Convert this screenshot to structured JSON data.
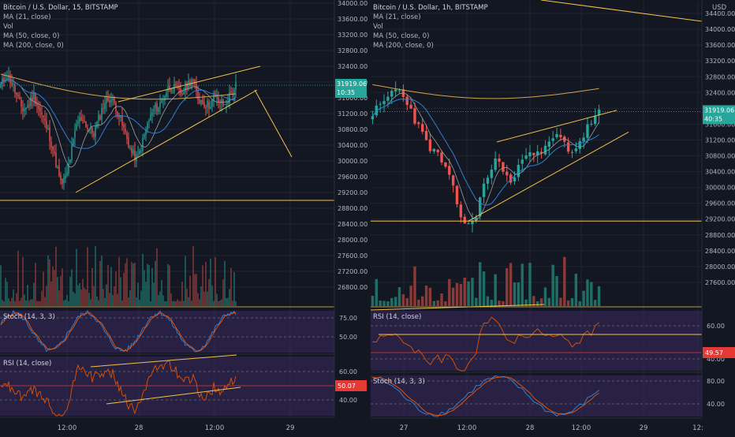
{
  "colors": {
    "background": "#131722",
    "grid": "#1f2433",
    "bull": "#26a69a",
    "bear": "#ef5350",
    "bull_volume": "#1f6f67",
    "bear_volume": "#8b3a3a",
    "trendline": "#f0c24b",
    "ma21": "#9aa0a6",
    "ma50": "#2f7fd6",
    "ma200": "#d4a44a",
    "price_badge": "#26a69a",
    "rsi_badge": "#e53935",
    "osc_fill": "#3a2a5e",
    "stoch_k": "#2f7fd6",
    "stoch_d": "#e65100",
    "rsi_line": "#e65100",
    "axis_text": "#b2b5be",
    "divider": "#2a2e39"
  },
  "chart_data": [
    {
      "type": "candlestick",
      "title": "Bitcoin / U.S. Dollar, 15, BITSTAMP",
      "legend": [
        "MA (21, close)",
        "Vol",
        "MA (50, close, 0)",
        "MA (200, close, 0)"
      ],
      "x_tick_labels": [
        "12:00",
        "28",
        "12:00",
        "29"
      ],
      "y_tick_labels": [
        "34000.00",
        "33600.00",
        "33200.00",
        "32800.00",
        "32400.00",
        "32000.00",
        "31600.00",
        "31200.00",
        "30800.00",
        "30400.00",
        "30000.00",
        "29600.00",
        "29200.00",
        "28800.00",
        "28400.00",
        "28000.00",
        "27600.00",
        "27200.00",
        "26800.00"
      ],
      "price_badge": "31919.06",
      "price_badge_sub": "10:35",
      "ylim": [
        26520,
        34040
      ],
      "horizontal_support": 29000,
      "price_path": [
        31900,
        32200,
        32000,
        31600,
        31300,
        31400,
        31700,
        31300,
        31000,
        30600,
        30000,
        29400,
        29600,
        30300,
        31000,
        31100,
        30800,
        30700,
        31100,
        31500,
        31600,
        31400,
        31000,
        30600,
        30200,
        30050,
        30500,
        31000,
        31300,
        31400,
        31700,
        31900,
        31800,
        31700,
        31900,
        32100,
        31600,
        31500,
        31400,
        31600,
        31500,
        31400,
        31700,
        31900
      ],
      "wedge_upper": [
        [
          31500,
          31200
        ],
        [
          32400,
          32400
        ]
      ],
      "wedge_lower": [
        [
          29200,
          29100
        ],
        [
          31800,
          31700
        ]
      ],
      "projection": [
        31800,
        30100
      ],
      "stoch": {
        "name": "Stoch (14, 3, 3)",
        "levels": [
          "75.00",
          "50.00"
        ]
      },
      "rsi": {
        "name": "RSI (14, close)",
        "levels": [
          "60.00",
          "40.00"
        ],
        "value_badge": "50.07"
      }
    },
    {
      "type": "candlestick",
      "title": "Bitcoin / U.S. Dollar, 1h, BITSTAMP",
      "legend": [
        "MA (21, close)",
        "Vol",
        "MA (50, close, 0)",
        "MA (200, close, 0)"
      ],
      "x_tick_labels": [
        "27",
        "12:00",
        "28",
        "12:00",
        "29",
        "12:"
      ],
      "y_tick_labels": [
        "34400.00",
        "34000.00",
        "33600.00",
        "33200.00",
        "32800.00",
        "32400.00",
        "32000.00",
        "31600.00",
        "31200.00",
        "30800.00",
        "30400.00",
        "30000.00",
        "29600.00",
        "29200.00",
        "28800.00",
        "28400.00",
        "28000.00",
        "27600.00"
      ],
      "axis_unit": "USD",
      "price_badge": "31919.06",
      "price_badge_sub": "40:35",
      "ylim": [
        27200,
        34700
      ],
      "horizontal_support": 29150,
      "price_path": [
        31900,
        32000,
        32200,
        32500,
        32400,
        32200,
        31800,
        31400,
        31100,
        30900,
        30700,
        30300,
        29800,
        29200,
        29000,
        29300,
        29900,
        30400,
        30700,
        30500,
        30100,
        30300,
        30900,
        31000,
        30800,
        30900,
        31200,
        31300,
        31100,
        30900,
        31100,
        31400,
        31700,
        31900
      ],
      "wedge_upper": [
        [
          31150,
          31150
        ],
        [
          31950,
          31950
        ]
      ],
      "wedge_lower": [
        [
          29150,
          29150
        ],
        [
          31400,
          31400
        ]
      ],
      "rsi": {
        "name": "RSI (14, close)",
        "levels": [
          "60.00",
          "40.00"
        ],
        "value_badge": "49.57"
      },
      "stoch": {
        "name": "Stoch (14, 3, 3)",
        "levels": [
          "80.00",
          "40.00"
        ]
      }
    }
  ]
}
